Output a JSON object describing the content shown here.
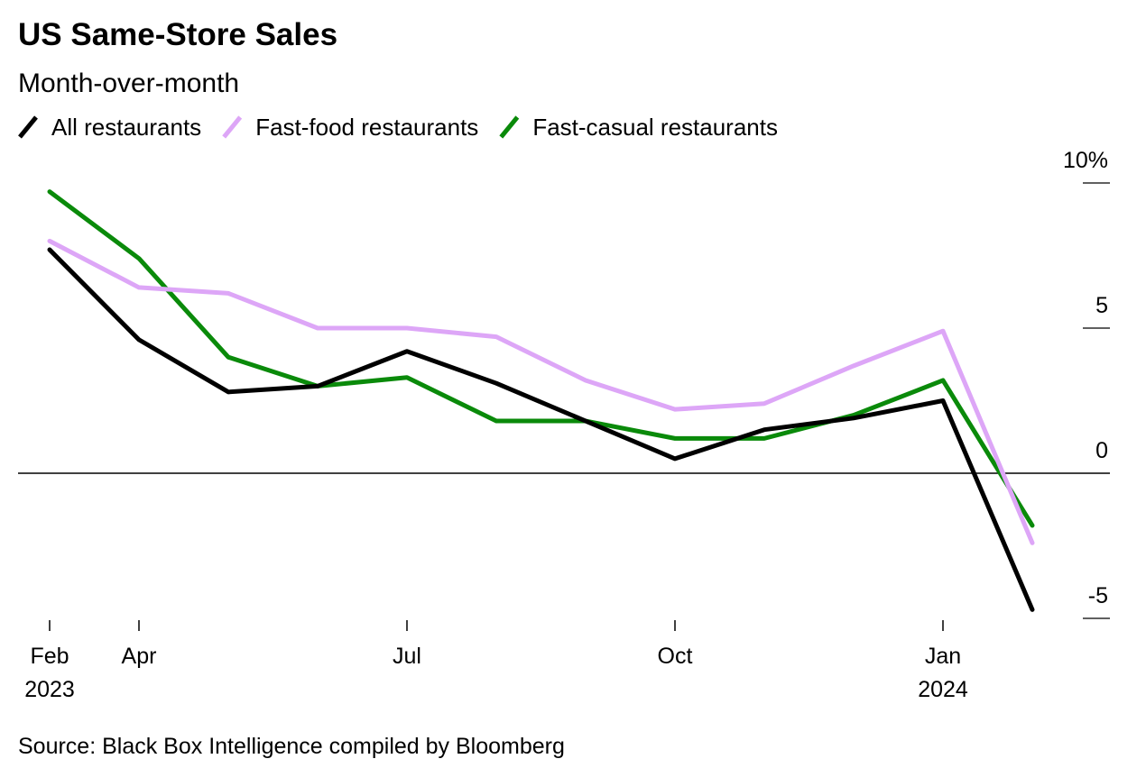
{
  "chart_data": {
    "type": "line",
    "title": "US Same-Store Sales",
    "subtitle": "Month-over-month",
    "source": "Source: Black Box Intelligence compiled by Bloomberg",
    "categories": [
      "Feb 2023",
      "Apr",
      null,
      null,
      "Jul",
      null,
      null,
      "Oct",
      null,
      null,
      "Jan 2024",
      null
    ],
    "series": [
      {
        "name": "All restaurants",
        "color": "#000000",
        "values": [
          7.7,
          4.6,
          2.8,
          3.0,
          4.2,
          3.1,
          1.8,
          0.5,
          1.5,
          1.9,
          2.5,
          -4.7
        ]
      },
      {
        "name": "Fast-food restaurants",
        "color": "#dda6f7",
        "values": [
          8.0,
          6.4,
          6.2,
          5.0,
          5.0,
          4.7,
          3.2,
          2.2,
          2.4,
          3.7,
          4.9,
          -2.4
        ]
      },
      {
        "name": "Fast-casual restaurants",
        "color": "#0a8a0a",
        "values": [
          9.7,
          7.4,
          4.0,
          3.0,
          3.3,
          1.8,
          1.8,
          1.2,
          1.2,
          2.0,
          3.2,
          -1.8
        ]
      }
    ],
    "ylim": [
      -5,
      10
    ],
    "yticks": [
      {
        "value": 10,
        "label": "10%"
      },
      5,
      0,
      -5
    ]
  }
}
